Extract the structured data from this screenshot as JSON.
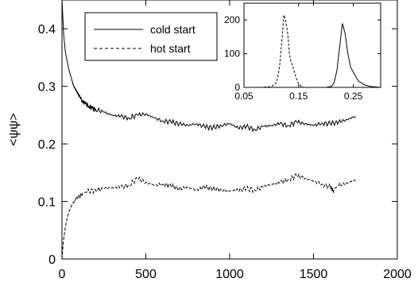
{
  "chart_data": [
    {
      "type": "line",
      "ylabel": "<ψψ>",
      "xlabel": "",
      "xlim": [
        0,
        2000
      ],
      "ylim": [
        0,
        0.45
      ],
      "xticks": [
        "0",
        "500",
        "1000",
        "1500",
        "2000"
      ],
      "yticks": [
        "0",
        "0.1",
        "0.2",
        "0.3",
        "0.4"
      ],
      "legend": {
        "placement": "top-left"
      },
      "series": [
        {
          "name": "cold start",
          "style": "solid",
          "x": [
            0,
            5,
            10,
            20,
            30,
            40,
            50,
            60,
            70,
            80,
            90,
            100,
            120,
            140,
            160,
            180,
            200,
            250,
            300,
            350,
            400,
            450,
            500,
            550,
            600,
            650,
            700,
            750,
            800,
            850,
            900,
            950,
            1000,
            1050,
            1100,
            1150,
            1200,
            1250,
            1300,
            1350,
            1400,
            1450,
            1500,
            1550,
            1600,
            1650,
            1700,
            1750
          ],
          "y": [
            0.45,
            0.42,
            0.39,
            0.36,
            0.345,
            0.33,
            0.32,
            0.31,
            0.3,
            0.295,
            0.29,
            0.285,
            0.275,
            0.27,
            0.265,
            0.262,
            0.26,
            0.255,
            0.25,
            0.248,
            0.245,
            0.25,
            0.252,
            0.245,
            0.24,
            0.238,
            0.235,
            0.232,
            0.235,
            0.23,
            0.228,
            0.232,
            0.235,
            0.228,
            0.23,
            0.225,
            0.23,
            0.232,
            0.235,
            0.232,
            0.238,
            0.235,
            0.232,
            0.236,
            0.235,
            0.238,
            0.242,
            0.248
          ]
        },
        {
          "name": "hot start",
          "style": "dashed",
          "x": [
            0,
            5,
            10,
            20,
            30,
            40,
            50,
            60,
            80,
            100,
            120,
            150,
            200,
            250,
            300,
            350,
            400,
            450,
            500,
            550,
            600,
            650,
            700,
            750,
            800,
            850,
            900,
            950,
            1000,
            1050,
            1100,
            1150,
            1200,
            1250,
            1300,
            1350,
            1400,
            1450,
            1500,
            1550,
            1600,
            1620,
            1650,
            1700,
            1750
          ],
          "y": [
            0.0,
            0.02,
            0.035,
            0.055,
            0.07,
            0.08,
            0.088,
            0.095,
            0.103,
            0.108,
            0.112,
            0.117,
            0.12,
            0.122,
            0.124,
            0.125,
            0.128,
            0.14,
            0.133,
            0.128,
            0.13,
            0.127,
            0.122,
            0.124,
            0.12,
            0.125,
            0.122,
            0.12,
            0.118,
            0.12,
            0.122,
            0.12,
            0.125,
            0.13,
            0.133,
            0.138,
            0.145,
            0.14,
            0.135,
            0.13,
            0.125,
            0.118,
            0.128,
            0.132,
            0.138
          ]
        }
      ]
    },
    {
      "type": "line",
      "role": "inset",
      "placement": "top-right",
      "xlim": [
        0.05,
        0.3
      ],
      "ylim": [
        0,
        250
      ],
      "xticks": [
        "0.05",
        "0.15",
        "0.25"
      ],
      "yticks": [
        "0",
        "100",
        "200"
      ],
      "series": [
        {
          "style": "dashed",
          "x": [
            0.05,
            0.08,
            0.1,
            0.11,
            0.115,
            0.12,
            0.123,
            0.126,
            0.13,
            0.133,
            0.136,
            0.14,
            0.145,
            0.15,
            0.155,
            0.16,
            0.2,
            0.3
          ],
          "y": [
            0,
            0,
            2,
            15,
            60,
            150,
            215,
            200,
            160,
            100,
            75,
            60,
            30,
            10,
            3,
            0,
            0,
            0
          ]
        },
        {
          "style": "solid",
          "x": [
            0.05,
            0.15,
            0.2,
            0.21,
            0.215,
            0.22,
            0.225,
            0.23,
            0.235,
            0.24,
            0.245,
            0.25,
            0.255,
            0.26,
            0.27,
            0.28,
            0.3
          ],
          "y": [
            0,
            0,
            0,
            3,
            15,
            50,
            120,
            190,
            160,
            100,
            60,
            45,
            30,
            18,
            8,
            3,
            0
          ]
        }
      ]
    }
  ]
}
